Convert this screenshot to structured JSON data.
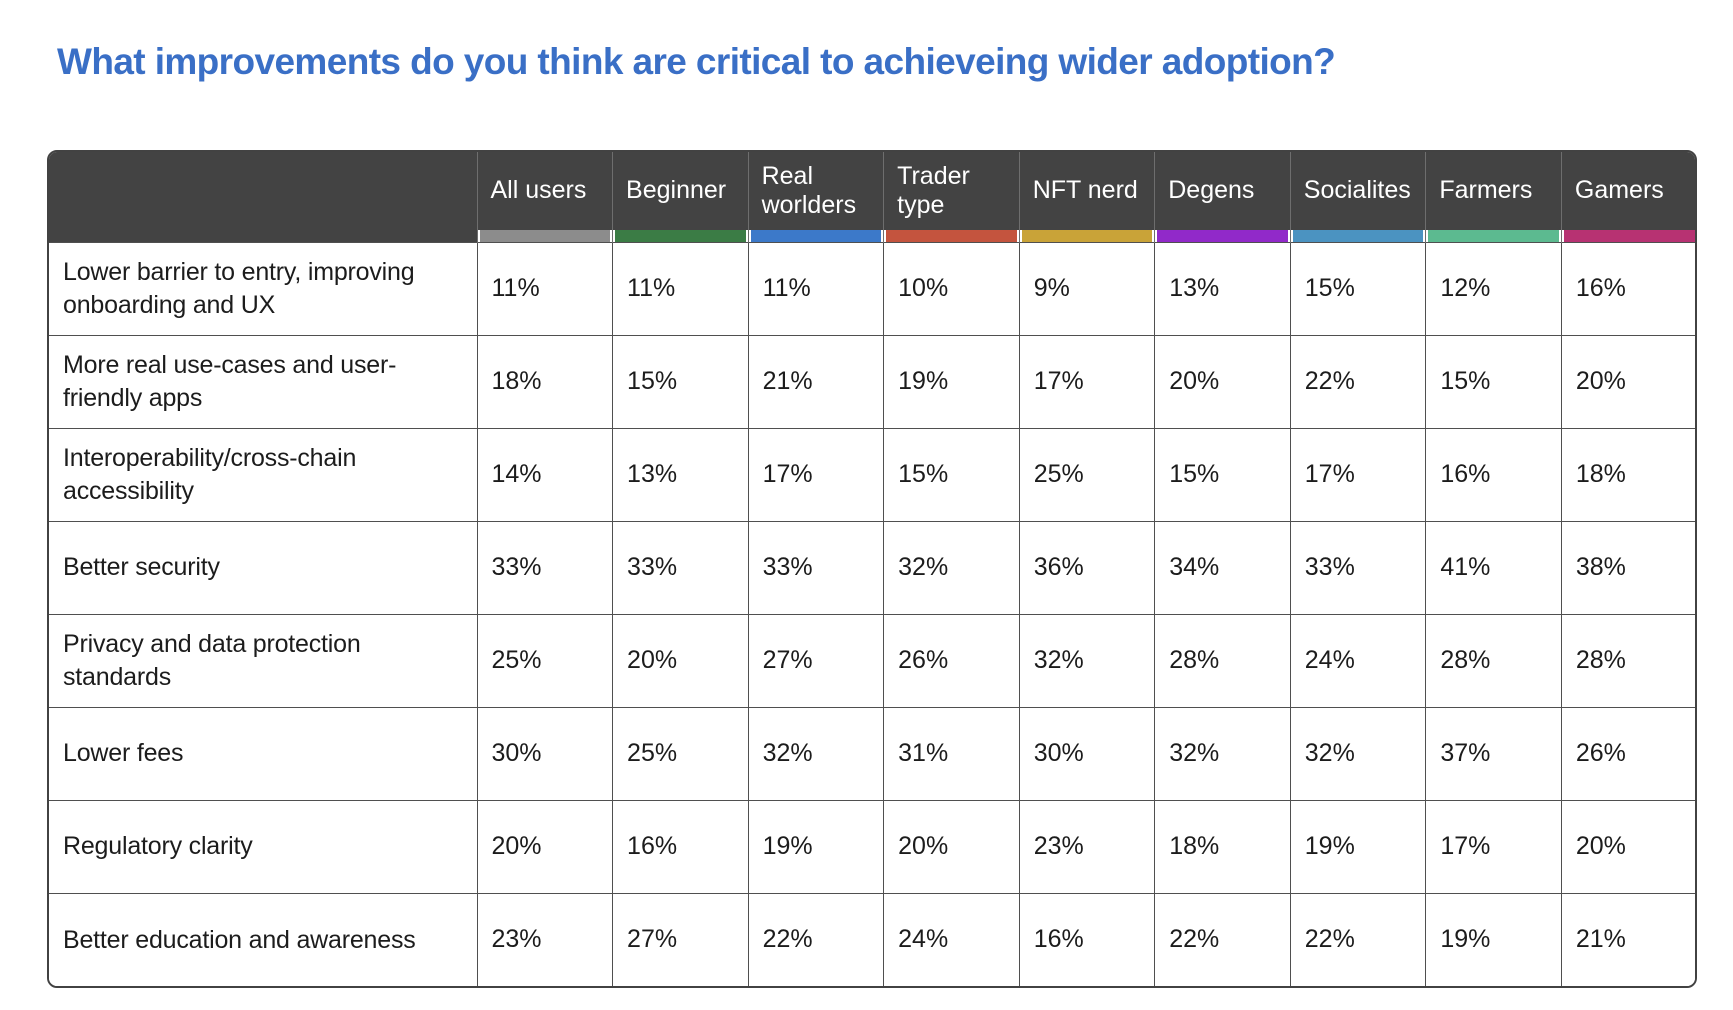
{
  "page_title": "What improvements do you think are critical to achieveing wider adoption?",
  "colors": {
    "title_text": "#3a6fc6",
    "header_background": "#434343",
    "body_text": "#1c1c1c"
  },
  "chart_data": {
    "type": "table",
    "title": "What improvements do you think are critical to achieveing wider adoption?",
    "row_header": "",
    "legend_position": "top",
    "columns": [
      {
        "label": "All users",
        "color": "#8c8c8c"
      },
      {
        "label": "Beginner",
        "color": "#3b7c45"
      },
      {
        "label": "Real worlders",
        "color": "#3c79c9"
      },
      {
        "label": "Trader type",
        "color": "#c4543e"
      },
      {
        "label": "NFT nerd",
        "color": "#c9a338"
      },
      {
        "label": "Degens",
        "color": "#9129c9"
      },
      {
        "label": "Socialites",
        "color": "#4b93c1"
      },
      {
        "label": "Farmers",
        "color": "#5cba90"
      },
      {
        "label": "Gamers",
        "color": "#b73272"
      }
    ],
    "rows": [
      {
        "label": "Lower barrier to entry, improving onboarding and UX",
        "values": [
          "11%",
          "11%",
          "11%",
          "10%",
          "9%",
          "13%",
          "15%",
          "12%",
          "16%"
        ]
      },
      {
        "label": "More real use-cases and user-friendly apps",
        "values": [
          "18%",
          "15%",
          "21%",
          "19%",
          "17%",
          "20%",
          "22%",
          "15%",
          "20%"
        ]
      },
      {
        "label": "Interoperability/cross-chain accessibility",
        "values": [
          "14%",
          "13%",
          "17%",
          "15%",
          "25%",
          "15%",
          "17%",
          "16%",
          "18%"
        ]
      },
      {
        "label": "Better security",
        "values": [
          "33%",
          "33%",
          "33%",
          "32%",
          "36%",
          "34%",
          "33%",
          "41%",
          "38%"
        ]
      },
      {
        "label": "Privacy and data protection standards",
        "values": [
          "25%",
          "20%",
          "27%",
          "26%",
          "32%",
          "28%",
          "24%",
          "28%",
          "28%"
        ]
      },
      {
        "label": "Lower fees",
        "values": [
          "30%",
          "25%",
          "32%",
          "31%",
          "30%",
          "32%",
          "32%",
          "37%",
          "26%"
        ]
      },
      {
        "label": "Regulatory clarity",
        "values": [
          "20%",
          "16%",
          "19%",
          "20%",
          "23%",
          "18%",
          "19%",
          "17%",
          "20%"
        ]
      },
      {
        "label": "Better education and awareness",
        "values": [
          "23%",
          "27%",
          "22%",
          "24%",
          "16%",
          "22%",
          "22%",
          "19%",
          "21%"
        ]
      }
    ]
  }
}
